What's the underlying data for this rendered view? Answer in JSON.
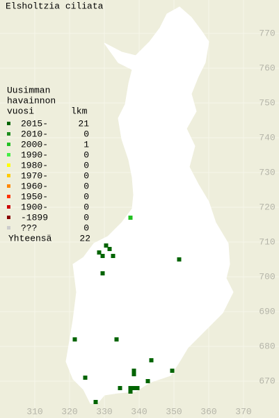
{
  "title": "Elsholtzia ciliata",
  "map": {
    "xlim": [
      300,
      380
    ],
    "ylim": [
      660,
      780
    ],
    "xticks": [
      310,
      320,
      330,
      340,
      350,
      360,
      370
    ],
    "yticks": [
      670,
      680,
      690,
      700,
      710,
      720,
      730,
      740,
      750,
      760,
      770
    ],
    "grid": true
  },
  "legend": {
    "title_lines": [
      "Uusimman",
      "havainnon",
      "vuosi"
    ],
    "count_header": "lkm",
    "rows": [
      {
        "label": "2015-",
        "color": "#006400",
        "count": 21,
        "points": [
          {
            "x": 330.5,
            "y": 709
          },
          {
            "x": 331.5,
            "y": 708
          },
          {
            "x": 328.5,
            "y": 707
          },
          {
            "x": 329.5,
            "y": 706
          },
          {
            "x": 332.5,
            "y": 706
          },
          {
            "x": 351.5,
            "y": 705
          },
          {
            "x": 329.5,
            "y": 701
          },
          {
            "x": 321.5,
            "y": 682
          },
          {
            "x": 333.5,
            "y": 682
          },
          {
            "x": 343.5,
            "y": 676
          },
          {
            "x": 338.5,
            "y": 673
          },
          {
            "x": 349.5,
            "y": 673
          },
          {
            "x": 338.5,
            "y": 672
          },
          {
            "x": 324.5,
            "y": 671
          },
          {
            "x": 342.5,
            "y": 670
          },
          {
            "x": 334.5,
            "y": 668
          },
          {
            "x": 337.5,
            "y": 668
          },
          {
            "x": 338.5,
            "y": 668
          },
          {
            "x": 339.5,
            "y": 668
          },
          {
            "x": 337.5,
            "y": 667
          },
          {
            "x": 327.5,
            "y": 664
          }
        ]
      },
      {
        "label": "2010-",
        "color": "#1e8c1e",
        "count": 0,
        "points": []
      },
      {
        "label": "2000-",
        "color": "#22c022",
        "count": 1,
        "points": [
          {
            "x": 337.5,
            "y": 717
          }
        ]
      },
      {
        "label": "1990-",
        "color": "#44ee44",
        "count": 0,
        "points": []
      },
      {
        "label": "1980-",
        "color": "#ffff00",
        "count": 0,
        "points": []
      },
      {
        "label": "1970-",
        "color": "#ffcc00",
        "count": 0,
        "points": []
      },
      {
        "label": "1960-",
        "color": "#ff8800",
        "count": 0,
        "points": []
      },
      {
        "label": "1950-",
        "color": "#ff3300",
        "count": 0,
        "points": []
      },
      {
        "label": "1900-",
        "color": "#cc0000",
        "count": 0,
        "points": []
      },
      {
        "label": "-1899",
        "color": "#880000",
        "count": 0,
        "points": []
      },
      {
        "label": "???",
        "color": "#cccccc",
        "count": 0,
        "points": []
      }
    ],
    "total_label": "Yhteensä",
    "total": 22
  }
}
